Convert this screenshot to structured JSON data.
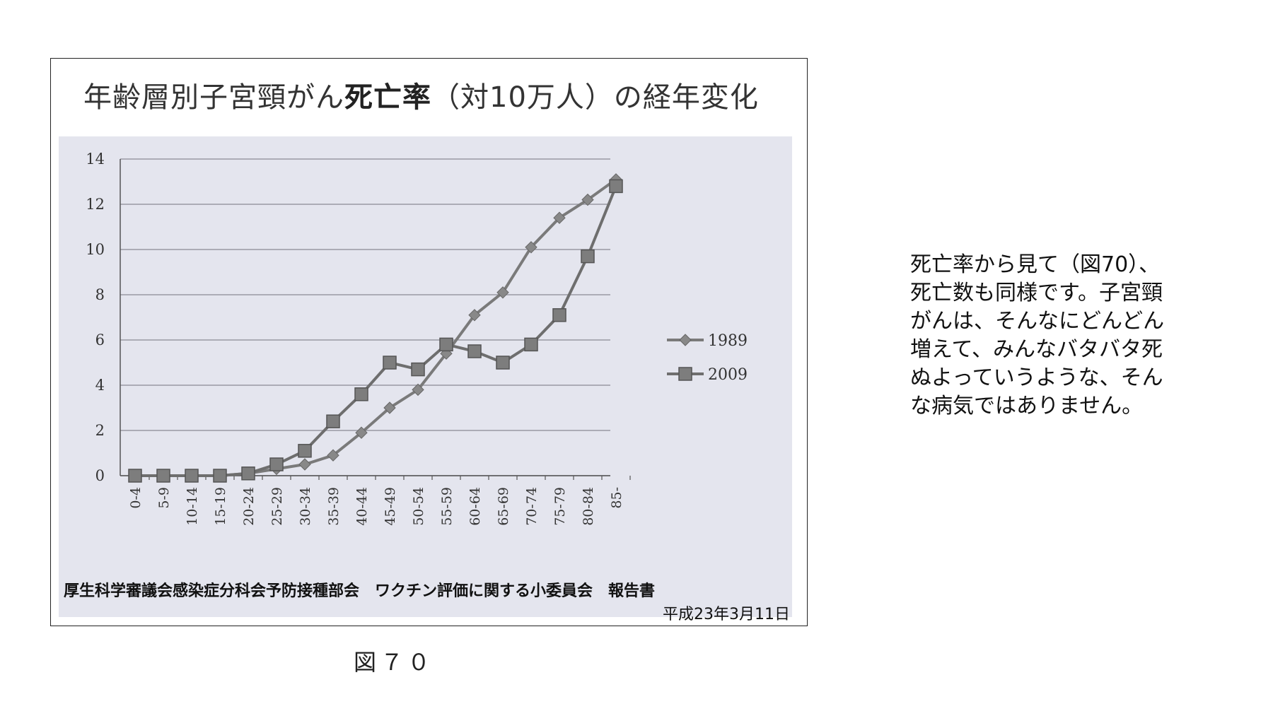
{
  "slide": {
    "title_normal_1": "年齢層別子宮頸がん",
    "title_bold": "死亡率",
    "title_normal_2": "（対10万人）の経年変化",
    "source_line_1": "厚生科学審議会感染症分科会予防接種部会　ワクチン評価に関する小委員会　報告書",
    "source_line_2": "平成23年3月11日",
    "caption": "図７０",
    "side_text_lines": [
      "死亡率から見て（図70）、",
      "死亡数も同様です。子宮頸",
      "がんは、そんなにどんどん",
      "増えて、みんなバタバタ死",
      "ぬよっていうような、そん",
      "な病気ではありません。"
    ]
  },
  "chart_data": {
    "type": "line",
    "title": "年齢層別子宮頸がん死亡率（対10万人）の経年変化",
    "categories": [
      "0-4",
      "5-9",
      "10-14",
      "15-19",
      "20-24",
      "25-29",
      "30-34",
      "35-39",
      "40-44",
      "45-49",
      "50-54",
      "55-59",
      "60-64",
      "65-69",
      "70-74",
      "75-79",
      "80-84",
      "85-"
    ],
    "series": [
      {
        "name": "1989",
        "marker": "diamond",
        "color": "#7a7a7a",
        "values": [
          0,
          0,
          0,
          0,
          0.1,
          0.3,
          0.5,
          0.9,
          1.9,
          3.0,
          3.8,
          5.4,
          7.1,
          8.1,
          10.1,
          11.4,
          12.2,
          13.1
        ]
      },
      {
        "name": "2009",
        "marker": "square",
        "color": "#6e6e6e",
        "values": [
          0,
          0,
          0,
          0,
          0.1,
          0.5,
          1.1,
          2.4,
          3.6,
          5.0,
          4.7,
          5.8,
          5.5,
          5.0,
          5.8,
          7.1,
          9.7,
          12.8
        ]
      }
    ],
    "ylim": [
      0,
      14
    ],
    "yticks": [
      0,
      2,
      4,
      6,
      8,
      10,
      12,
      14
    ],
    "xlabel": "",
    "ylabel": "",
    "grid": true,
    "legend_position": "right"
  }
}
